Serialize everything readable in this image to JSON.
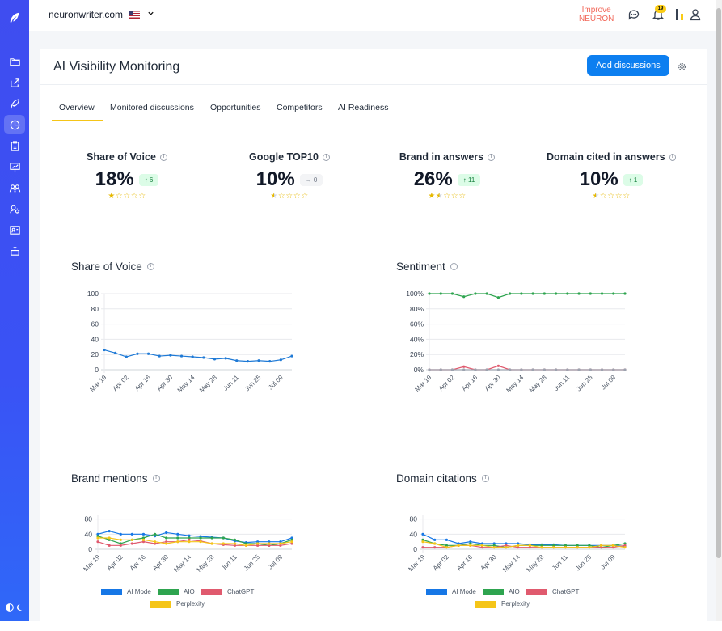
{
  "sidebar": {
    "logo_icon": "feather-icon",
    "items": [
      {
        "icon": "folder-icon",
        "active": false
      },
      {
        "icon": "share-icon",
        "active": false
      },
      {
        "icon": "feather-icon",
        "active": false
      },
      {
        "icon": "pie-chart-icon",
        "active": true
      },
      {
        "icon": "clipboard-icon",
        "active": false
      },
      {
        "icon": "presentation-icon",
        "active": false
      },
      {
        "icon": "users-icon",
        "active": false
      },
      {
        "icon": "settings-users-icon",
        "active": false
      },
      {
        "icon": "id-card-icon",
        "active": false
      },
      {
        "icon": "plugin-icon",
        "active": false
      }
    ],
    "theme_toggle_icon": "theme-toggle-icon"
  },
  "topbar": {
    "site": "neuronwriter.com",
    "improve_line1": "Improve",
    "improve_line2": "NEURON",
    "notifications_count": "19"
  },
  "page": {
    "title": "AI Visibility Monitoring",
    "add_button": "Add discussions"
  },
  "tabs": [
    "Overview",
    "Monitored discussions",
    "Opportunities",
    "Competitors",
    "AI Readiness"
  ],
  "kpis": [
    {
      "title": "Share of Voice",
      "value": "18%",
      "delta": "↑ 6",
      "delta_type": "up",
      "stars": 1
    },
    {
      "title": "Google TOP10",
      "value": "10%",
      "delta": "→ 0",
      "delta_type": "neutral",
      "stars": 0.5
    },
    {
      "title": "Brand in answers",
      "value": "26%",
      "delta": "↑ 11",
      "delta_type": "up",
      "stars": 1.5
    },
    {
      "title": "Domain cited in answers",
      "value": "10%",
      "delta": "↑ 1",
      "delta_type": "up",
      "stars": 0.5
    }
  ],
  "chart_titles": {
    "share_of_voice": "Share of Voice",
    "sentiment": "Sentiment",
    "brand_mentions": "Brand mentions",
    "domain_citations": "Domain citations"
  },
  "colors": {
    "accent": "#0d7ff0",
    "ai_mode": "#1677e6",
    "aio": "#2ea44f",
    "chatgpt": "#e05a6e",
    "perplexity": "#f5c518",
    "sov_line": "#1f7ad6",
    "sentiment_positive": "#2ea44f",
    "sentiment_negative": "#e05a6e",
    "sentiment_neutral": "#9ca3af"
  },
  "chart_data": [
    {
      "id": "share_of_voice",
      "type": "line",
      "x": [
        "Mar 19",
        "Mar 26",
        "Apr 02",
        "Apr 09",
        "Apr 16",
        "Apr 23",
        "Apr 30",
        "May 07",
        "May 14",
        "May 21",
        "May 28",
        "Jun 04",
        "Jun 11",
        "Jun 18",
        "Jun 25",
        "Jul 02",
        "Jul 09",
        "Jul 16"
      ],
      "tick_labels": [
        "Mar 19",
        "Apr 02",
        "Apr 16",
        "Apr 30",
        "May 14",
        "May 28",
        "Jun 11",
        "Jun 25",
        "Jul 09"
      ],
      "series": [
        {
          "values": [
            26,
            22,
            17,
            21,
            21,
            18,
            19,
            18,
            17,
            16,
            14,
            15,
            12,
            11,
            12,
            11,
            13,
            18
          ]
        }
      ],
      "ylim": [
        0,
        100
      ],
      "yticks": [
        0,
        20,
        40,
        60,
        80,
        100
      ],
      "ytick_format": "",
      "grid": true
    },
    {
      "id": "sentiment",
      "type": "line",
      "x": [
        "Mar 19",
        "Mar 26",
        "Apr 02",
        "Apr 09",
        "Apr 16",
        "Apr 23",
        "Apr 30",
        "May 07",
        "May 14",
        "May 21",
        "May 28",
        "Jun 04",
        "Jun 11",
        "Jun 18",
        "Jun 25",
        "Jul 02",
        "Jul 09",
        "Jul 16"
      ],
      "tick_labels": [
        "Mar 19",
        "Apr 02",
        "Apr 16",
        "Apr 30",
        "May 14",
        "May 28",
        "Jun 11",
        "Jun 25",
        "Jul 09"
      ],
      "series": [
        {
          "values": [
            100,
            100,
            100,
            96,
            100,
            100,
            95,
            100,
            100,
            100,
            100,
            100,
            100,
            100,
            100,
            100,
            100,
            100
          ]
        },
        {
          "values": [
            0,
            0,
            0,
            4,
            0,
            0,
            5,
            0,
            0,
            0,
            0,
            0,
            0,
            0,
            0,
            0,
            0,
            0
          ]
        },
        {
          "values": [
            0,
            0,
            0,
            0,
            0,
            0,
            0,
            0,
            0,
            0,
            0,
            0,
            0,
            0,
            0,
            0,
            0,
            0
          ]
        }
      ],
      "ylim": [
        0,
        100
      ],
      "yticks": [
        0,
        20,
        40,
        60,
        80,
        100
      ],
      "ytick_format": "%",
      "grid": true
    },
    {
      "id": "brand_mentions",
      "type": "line",
      "x": [
        "Mar 19",
        "Mar 26",
        "Apr 02",
        "Apr 09",
        "Apr 16",
        "Apr 23",
        "Apr 30",
        "May 07",
        "May 14",
        "May 21",
        "May 28",
        "Jun 04",
        "Jun 11",
        "Jun 18",
        "Jun 25",
        "Jul 02",
        "Jul 09",
        "Jul 16"
      ],
      "tick_labels": [
        "Mar 19",
        "Apr 02",
        "Apr 16",
        "Apr 30",
        "May 14",
        "May 28",
        "Jun 11",
        "Jun 25",
        "Jul 09"
      ],
      "series": [
        {
          "name": "AI Mode",
          "values": [
            40,
            48,
            40,
            40,
            40,
            35,
            44,
            40,
            36,
            34,
            32,
            30,
            22,
            18,
            20,
            20,
            20,
            30
          ]
        },
        {
          "name": "AIO",
          "values": [
            35,
            25,
            15,
            25,
            30,
            40,
            30,
            30,
            30,
            30,
            30,
            30,
            25,
            15,
            15,
            10,
            15,
            25
          ]
        },
        {
          "name": "ChatGPT",
          "values": [
            20,
            10,
            10,
            15,
            20,
            15,
            20,
            20,
            25,
            22,
            15,
            12,
            10,
            10,
            10,
            10,
            10,
            15
          ]
        },
        {
          "name": "Perplexity",
          "values": [
            30,
            30,
            25,
            25,
            25,
            20,
            15,
            20,
            20,
            20,
            15,
            15,
            15,
            10,
            15,
            15,
            15,
            20
          ]
        }
      ],
      "ylim": [
        0,
        90
      ],
      "yticks": [
        0,
        40,
        80
      ],
      "ytick_format": "",
      "grid": true,
      "legend": "bottom"
    },
    {
      "id": "domain_citations",
      "type": "line",
      "x": [
        "Mar 19",
        "Mar 26",
        "Apr 02",
        "Apr 09",
        "Apr 16",
        "Apr 23",
        "Apr 30",
        "May 07",
        "May 14",
        "May 21",
        "May 28",
        "Jun 04",
        "Jun 11",
        "Jun 18",
        "Jun 25",
        "Jul 02",
        "Jul 09",
        "Jul 16"
      ],
      "tick_labels": [
        "Mar 19",
        "Apr 02",
        "Apr 16",
        "Apr 30",
        "May 14",
        "May 28",
        "Jun 11",
        "Jun 25",
        "Jul 09"
      ],
      "series": [
        {
          "name": "AI Mode",
          "values": [
            40,
            25,
            25,
            15,
            20,
            15,
            15,
            15,
            15,
            12,
            12,
            12,
            10,
            10,
            10,
            10,
            10,
            8
          ]
        },
        {
          "name": "AIO",
          "values": [
            25,
            15,
            10,
            10,
            15,
            10,
            10,
            5,
            10,
            10,
            10,
            10,
            10,
            10,
            10,
            5,
            10,
            15
          ]
        },
        {
          "name": "ChatGPT",
          "values": [
            5,
            5,
            5,
            10,
            10,
            5,
            5,
            10,
            5,
            5,
            5,
            5,
            5,
            5,
            5,
            5,
            5,
            10
          ]
        },
        {
          "name": "Perplexity",
          "values": [
            20,
            15,
            5,
            10,
            10,
            10,
            5,
            5,
            10,
            10,
            5,
            5,
            5,
            5,
            5,
            10,
            10,
            5
          ]
        }
      ],
      "ylim": [
        0,
        90
      ],
      "yticks": [
        0,
        40,
        80
      ],
      "ytick_format": "",
      "grid": true,
      "legend": "bottom"
    }
  ]
}
